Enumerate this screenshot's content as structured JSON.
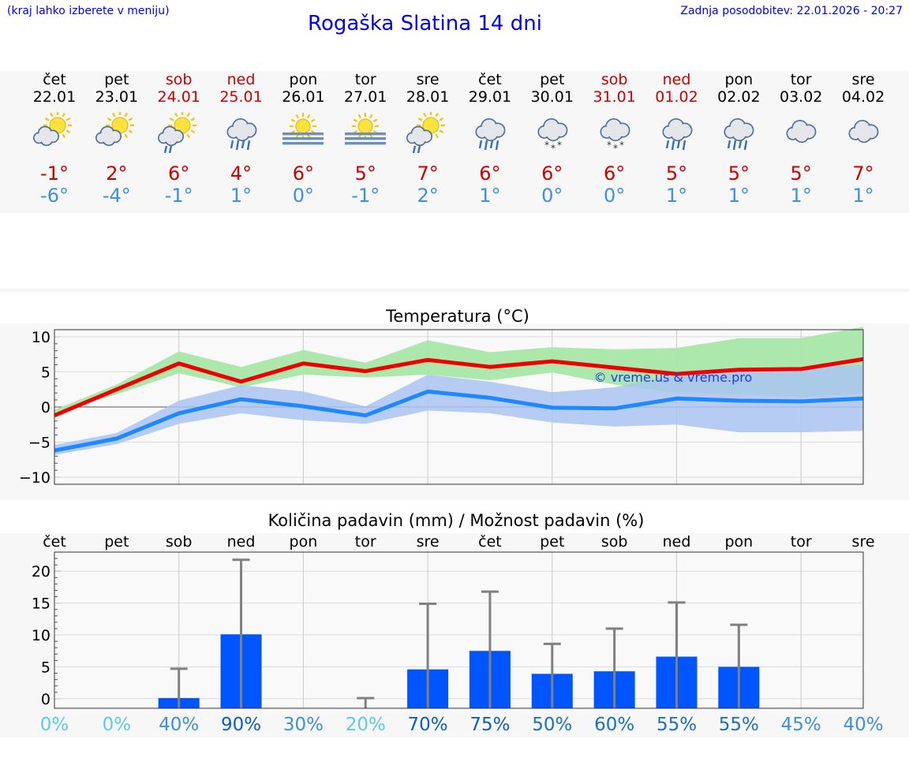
{
  "header": {
    "hint": "(kraj lahko izberete v meniju)",
    "title": "Rogaška Slatina 14 dni",
    "updated": "Zadnja posodobitev: 22.01.2026 - 20:27"
  },
  "days": [
    {
      "name": "čet",
      "date": "22.01",
      "weekend": false,
      "icon": "sun-cloud-icon",
      "tmax": "-1°",
      "tmin": "-6°"
    },
    {
      "name": "pet",
      "date": "23.01",
      "weekend": false,
      "icon": "sun-cloud-icon",
      "tmax": "2°",
      "tmin": "-4°"
    },
    {
      "name": "sob",
      "date": "24.01",
      "weekend": true,
      "icon": "sun-cloud-rain-icon",
      "tmax": "6°",
      "tmin": "-1°"
    },
    {
      "name": "ned",
      "date": "25.01",
      "weekend": true,
      "icon": "cloud-rain-icon",
      "tmax": "4°",
      "tmin": "1°"
    },
    {
      "name": "pon",
      "date": "26.01",
      "weekend": false,
      "icon": "sun-fog-icon",
      "tmax": "6°",
      "tmin": "0°"
    },
    {
      "name": "tor",
      "date": "27.01",
      "weekend": false,
      "icon": "sun-fog-icon",
      "tmax": "5°",
      "tmin": "-1°"
    },
    {
      "name": "sre",
      "date": "28.01",
      "weekend": false,
      "icon": "sun-cloud-rain-icon",
      "tmax": "7°",
      "tmin": "2°"
    },
    {
      "name": "čet",
      "date": "29.01",
      "weekend": false,
      "icon": "cloud-rain-icon",
      "tmax": "6°",
      "tmin": "1°"
    },
    {
      "name": "pet",
      "date": "30.01",
      "weekend": false,
      "icon": "cloud-snow-icon",
      "tmax": "6°",
      "tmin": "0°"
    },
    {
      "name": "sob",
      "date": "31.01",
      "weekend": true,
      "icon": "cloud-snow-icon",
      "tmax": "6°",
      "tmin": "0°"
    },
    {
      "name": "ned",
      "date": "01.02",
      "weekend": true,
      "icon": "cloud-rain-icon",
      "tmax": "5°",
      "tmin": "1°"
    },
    {
      "name": "pon",
      "date": "02.02",
      "weekend": false,
      "icon": "cloud-rain-icon",
      "tmax": "5°",
      "tmin": "1°"
    },
    {
      "name": "tor",
      "date": "03.02",
      "weekend": false,
      "icon": "cloud-icon",
      "tmax": "5°",
      "tmin": "1°"
    },
    {
      "name": "sre",
      "date": "04.02",
      "weekend": false,
      "icon": "cloud-icon",
      "tmax": "7°",
      "tmin": "1°"
    }
  ],
  "colors": {
    "max_line": "#ee0000",
    "min_line": "#1e88ff",
    "max_band": "#a8e6a8",
    "min_band": "#aac4f2",
    "overlap_band": "#88c4b0",
    "precip_bar": "#0055ff",
    "error_bar": "#808080"
  },
  "chart_data": [
    {
      "type": "line",
      "title": "Temperatura (°C)",
      "ylim": [
        -11,
        11
      ],
      "yticks": [
        10,
        5,
        0,
        -5,
        -10
      ],
      "ytick_labels": [
        "10",
        "5",
        "0",
        "−5",
        "−10"
      ],
      "watermark": "© vreme.us & vreme.pro",
      "series": [
        {
          "name": "max",
          "values": [
            -1.2,
            2.5,
            6.2,
            3.6,
            6.2,
            5.1,
            6.7,
            5.7,
            6.5,
            5.6,
            4.7,
            5.3,
            5.4,
            6.8
          ],
          "band_low": [
            -0.8,
            1.8,
            4.8,
            2.8,
            4.6,
            4.2,
            4.6,
            3.8,
            4.9,
            3.2,
            2.0,
            1.8,
            1.4,
            1.9
          ],
          "band_high": [
            -0.4,
            3.2,
            7.9,
            5.7,
            8.1,
            6.3,
            9.5,
            7.8,
            8.5,
            8.2,
            8.4,
            9.8,
            9.8,
            11.4
          ]
        },
        {
          "name": "min",
          "values": [
            -6.2,
            -4.5,
            -0.9,
            1.1,
            0.1,
            -1.2,
            2.2,
            1.3,
            -0.1,
            -0.2,
            1.2,
            0.9,
            0.8,
            1.2
          ],
          "band_low": [
            -6.8,
            -5.3,
            -2.4,
            -0.9,
            -1.9,
            -2.4,
            -0.5,
            -0.9,
            -2.2,
            -2.8,
            -2.5,
            -3.6,
            -3.6,
            -3.4
          ],
          "band_high": [
            -5.4,
            -3.7,
            0.9,
            3.1,
            2.2,
            0.1,
            4.6,
            3.6,
            2.1,
            2.8,
            4.6,
            5.3,
            5.6,
            6.0
          ]
        }
      ]
    },
    {
      "type": "bar",
      "title": "Količina padavin (mm) / Možnost padavin (%)",
      "categories": [
        "čet",
        "pet",
        "sob",
        "ned",
        "pon",
        "tor",
        "sre",
        "čet",
        "pet",
        "sob",
        "ned",
        "pon",
        "tor",
        "sre"
      ],
      "values": [
        0,
        0,
        0.1,
        10.1,
        0,
        0,
        4.6,
        7.5,
        3.9,
        4.3,
        6.6,
        5.0,
        0,
        0
      ],
      "error_high": [
        0,
        0,
        4.7,
        21.8,
        0,
        0.1,
        14.9,
        16.8,
        8.6,
        11.0,
        15.1,
        11.6,
        0,
        0
      ],
      "chance_labels": [
        "0%",
        "0%",
        "40%",
        "90%",
        "30%",
        "20%",
        "70%",
        "75%",
        "50%",
        "60%",
        "55%",
        "55%",
        "45%",
        "40%"
      ],
      "chance_values": [
        0,
        0,
        40,
        90,
        30,
        20,
        70,
        75,
        50,
        60,
        55,
        55,
        45,
        40
      ],
      "ylim": [
        -1.5,
        23
      ],
      "yticks": [
        20,
        15,
        10,
        5,
        0
      ],
      "ytick_labels": [
        "20",
        "15",
        "10",
        "5",
        "0"
      ]
    }
  ]
}
